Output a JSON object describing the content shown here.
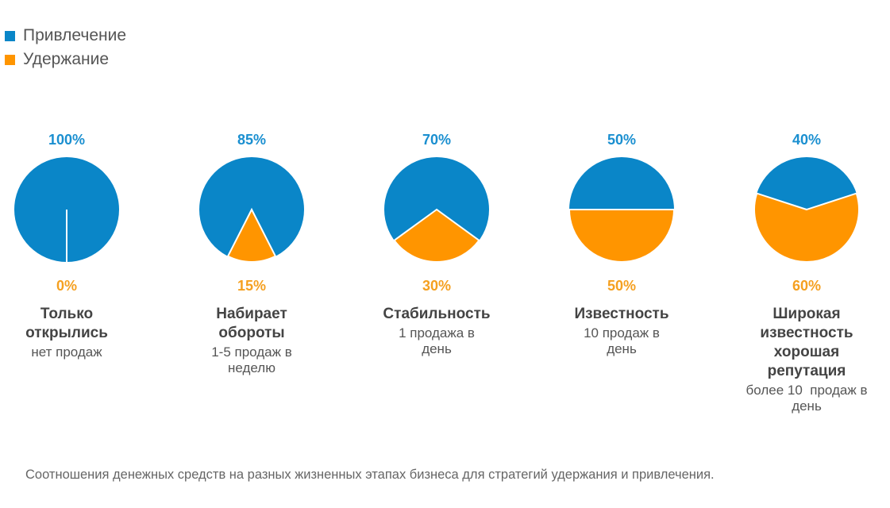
{
  "chart_data": {
    "type": "pie",
    "legend": [
      {
        "label": "Привлечение",
        "color": "#0a86c8"
      },
      {
        "label": "Удержание",
        "color": "#ff9500"
      }
    ],
    "legend_placement": "top-left",
    "pies": [
      {
        "attraction": 100,
        "retention": 0,
        "attraction_label": "100%",
        "retention_label": "0%",
        "title": "Только открылись",
        "subtitle": "нет продаж"
      },
      {
        "attraction": 85,
        "retention": 15,
        "attraction_label": "85%",
        "retention_label": "15%",
        "title": "Набирает обороты",
        "subtitle": "1-5 продаж в неделю"
      },
      {
        "attraction": 70,
        "retention": 30,
        "attraction_label": "70%",
        "retention_label": "30%",
        "title": "Стабильность",
        "subtitle": "1 продажа в день"
      },
      {
        "attraction": 50,
        "retention": 50,
        "attraction_label": "50%",
        "retention_label": "50%",
        "title": "Известность",
        "subtitle": "10 продаж в день"
      },
      {
        "attraction": 40,
        "retention": 60,
        "attraction_label": "40%",
        "retention_label": "60%",
        "title": "Широкая известность хорошая репутация",
        "subtitle": "более 10  продаж в день"
      }
    ],
    "caption": "Соотношения денежных средств на разных жизненных этапах бизнеса для стратегий удержания и привлечения."
  }
}
